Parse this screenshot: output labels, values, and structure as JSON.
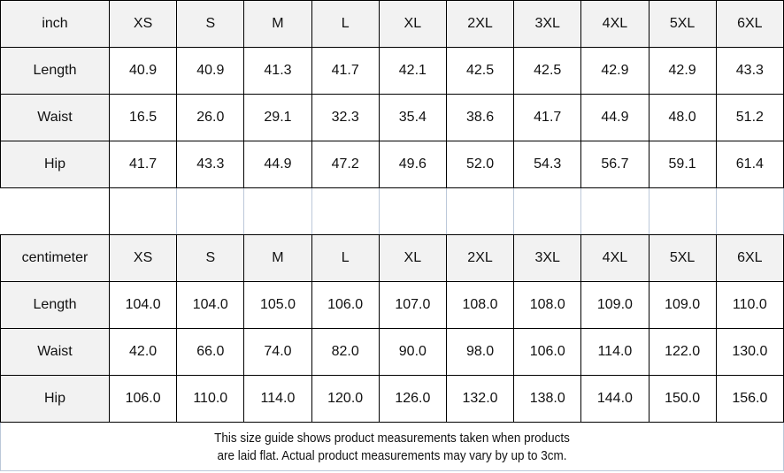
{
  "colors": {
    "page_bg": "#ffffff",
    "header_bg": "#f2f2f2",
    "grid_dark": "#000000",
    "grid_light": "#bcc8d9",
    "text_color": "#111111"
  },
  "size_guide": {
    "sections": [
      {
        "unit_label": "inch",
        "sizes": [
          "XS",
          "S",
          "M",
          "L",
          "XL",
          "2XL",
          "3XL",
          "4XL",
          "5XL",
          "6XL"
        ],
        "rows": [
          {
            "label": "Length",
            "values": [
              "40.9",
              "40.9",
              "41.3",
              "41.7",
              "42.1",
              "42.5",
              "42.5",
              "42.9",
              "42.9",
              "43.3"
            ]
          },
          {
            "label": "Waist",
            "values": [
              "16.5",
              "26.0",
              "29.1",
              "32.3",
              "35.4",
              "38.6",
              "41.7",
              "44.9",
              "48.0",
              "51.2"
            ]
          },
          {
            "label": "Hip",
            "values": [
              "41.7",
              "43.3",
              "44.9",
              "47.2",
              "49.6",
              "52.0",
              "54.3",
              "56.7",
              "59.1",
              "61.4"
            ]
          }
        ]
      },
      {
        "unit_label": "centimeter",
        "sizes": [
          "XS",
          "S",
          "M",
          "L",
          "XL",
          "2XL",
          "3XL",
          "4XL",
          "5XL",
          "6XL"
        ],
        "rows": [
          {
            "label": "Length",
            "values": [
              "104.0",
              "104.0",
              "105.0",
              "106.0",
              "107.0",
              "108.0",
              "108.0",
              "109.0",
              "109.0",
              "110.0"
            ]
          },
          {
            "label": "Waist",
            "values": [
              "42.0",
              "66.0",
              "74.0",
              "82.0",
              "90.0",
              "98.0",
              "106.0",
              "114.0",
              "122.0",
              "130.0"
            ]
          },
          {
            "label": "Hip",
            "values": [
              "106.0",
              "110.0",
              "114.0",
              "120.0",
              "126.0",
              "132.0",
              "138.0",
              "144.0",
              "150.0",
              "156.0"
            ]
          }
        ]
      }
    ],
    "footnote_lines": [
      "This size guide shows product measurements taken when products",
      "are laid flat. Actual product measurements may vary by up to 3cm."
    ]
  }
}
